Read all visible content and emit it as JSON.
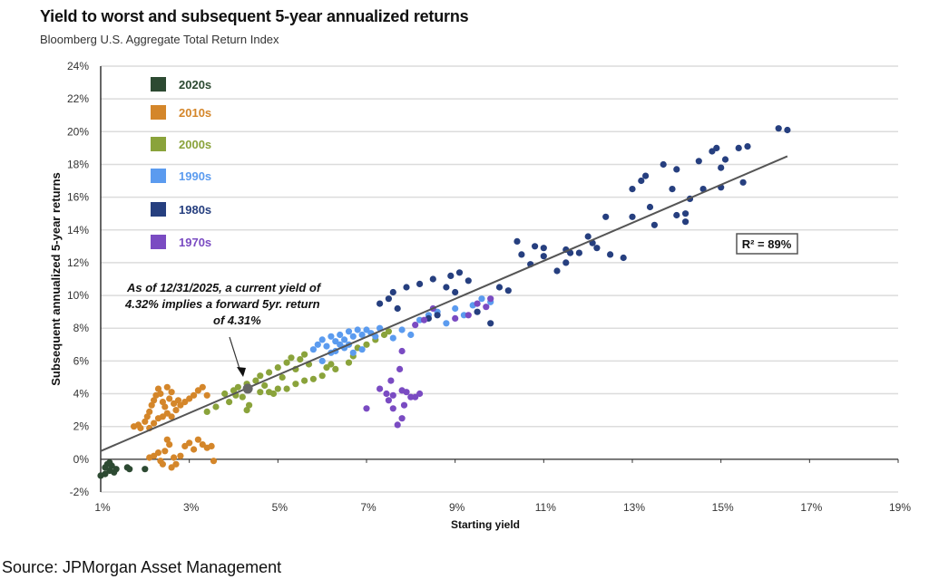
{
  "chart_data": {
    "type": "scatter",
    "title": "Yield to worst and subsequent 5-year annualized returns",
    "subtitle": "Bloomberg U.S. Aggregate Total Return Index",
    "xlabel": "Starting yield",
    "ylabel": "Subsequent annualized 5-year returns",
    "xlim": [
      1,
      19
    ],
    "ylim": [
      -2,
      24
    ],
    "x_ticks": [
      "1%",
      "3%",
      "5%",
      "7%",
      "9%",
      "11%",
      "13%",
      "15%",
      "17%",
      "19%"
    ],
    "y_ticks": [
      "-2%",
      "0%",
      "2%",
      "4%",
      "6%",
      "8%",
      "10%",
      "12%",
      "14%",
      "16%",
      "18%",
      "20%",
      "22%",
      "24%"
    ],
    "grid": "horizontal",
    "legend_position": "top-left",
    "r_squared_label": "R² = 89%",
    "annotation": [
      "As of 12/31/2025,  a current yield of",
      "4.32% implies a forward  5yr. return",
      "of 4.31%"
    ],
    "current_point": {
      "x": 4.32,
      "y": 4.31,
      "color": "#666666"
    },
    "trendline": {
      "x": [
        1.0,
        16.5
      ],
      "y": [
        0.5,
        18.5
      ],
      "color": "#555555"
    },
    "series": [
      {
        "name": "2020s",
        "color": "#2d4a32",
        "points": [
          [
            1.0,
            -1.0
          ],
          [
            1.1,
            -0.5
          ],
          [
            1.15,
            -0.3
          ],
          [
            1.2,
            -0.7
          ],
          [
            1.25,
            -0.4
          ],
          [
            1.3,
            -0.8
          ],
          [
            1.35,
            -0.6
          ],
          [
            1.6,
            -0.5
          ],
          [
            1.65,
            -0.6
          ],
          [
            2.0,
            -0.6
          ],
          [
            1.1,
            -0.9
          ],
          [
            1.2,
            -0.2
          ]
        ]
      },
      {
        "name": "2010s",
        "color": "#d4862a",
        "points": [
          [
            1.75,
            2.0
          ],
          [
            1.85,
            2.1
          ],
          [
            1.9,
            1.9
          ],
          [
            2.0,
            2.3
          ],
          [
            2.05,
            2.6
          ],
          [
            2.1,
            2.9
          ],
          [
            2.15,
            3.3
          ],
          [
            2.2,
            3.6
          ],
          [
            2.25,
            3.9
          ],
          [
            2.3,
            4.3
          ],
          [
            2.35,
            4.0
          ],
          [
            2.4,
            3.5
          ],
          [
            2.45,
            3.2
          ],
          [
            2.5,
            2.8
          ],
          [
            2.3,
            2.5
          ],
          [
            2.2,
            2.2
          ],
          [
            2.4,
            2.6
          ],
          [
            2.55,
            3.7
          ],
          [
            2.6,
            4.1
          ],
          [
            2.65,
            3.4
          ],
          [
            2.7,
            3.0
          ],
          [
            2.75,
            3.6
          ],
          [
            2.8,
            3.3
          ],
          [
            2.9,
            3.5
          ],
          [
            3.0,
            3.7
          ],
          [
            3.1,
            3.9
          ],
          [
            3.2,
            4.2
          ],
          [
            3.3,
            4.4
          ],
          [
            3.4,
            3.9
          ],
          [
            2.5,
            4.4
          ],
          [
            2.1,
            1.9
          ],
          [
            2.6,
            2.6
          ],
          [
            2.2,
            0.2
          ],
          [
            2.3,
            0.4
          ],
          [
            2.35,
            -0.1
          ],
          [
            2.45,
            0.5
          ],
          [
            2.5,
            1.2
          ],
          [
            2.55,
            0.9
          ],
          [
            2.6,
            -0.5
          ],
          [
            2.65,
            0.1
          ],
          [
            2.7,
            -0.3
          ],
          [
            2.8,
            0.2
          ],
          [
            2.9,
            0.8
          ],
          [
            3.0,
            1.0
          ],
          [
            3.1,
            0.6
          ],
          [
            3.2,
            1.2
          ],
          [
            3.3,
            0.9
          ],
          [
            3.4,
            0.7
          ],
          [
            3.5,
            0.8
          ],
          [
            3.55,
            -0.1
          ],
          [
            2.4,
            -0.3
          ],
          [
            2.1,
            0.1
          ]
        ]
      },
      {
        "name": "2000s",
        "color": "#8aa33b",
        "points": [
          [
            3.4,
            2.9
          ],
          [
            3.6,
            3.2
          ],
          [
            3.8,
            4.0
          ],
          [
            3.9,
            3.5
          ],
          [
            4.0,
            4.2
          ],
          [
            4.1,
            4.4
          ],
          [
            4.2,
            3.8
          ],
          [
            4.3,
            4.6
          ],
          [
            4.35,
            3.3
          ],
          [
            4.5,
            4.8
          ],
          [
            4.6,
            5.1
          ],
          [
            4.7,
            4.5
          ],
          [
            4.8,
            5.3
          ],
          [
            4.9,
            4.0
          ],
          [
            5.0,
            5.6
          ],
          [
            5.1,
            5.0
          ],
          [
            5.2,
            5.9
          ],
          [
            5.3,
            6.2
          ],
          [
            5.4,
            5.5
          ],
          [
            5.5,
            6.1
          ],
          [
            5.6,
            6.4
          ],
          [
            5.7,
            5.8
          ],
          [
            5.2,
            4.3
          ],
          [
            5.4,
            4.6
          ],
          [
            5.6,
            4.8
          ],
          [
            5.8,
            4.9
          ],
          [
            6.0,
            5.1
          ],
          [
            6.1,
            5.6
          ],
          [
            6.2,
            5.8
          ],
          [
            6.3,
            5.5
          ],
          [
            4.6,
            4.1
          ],
          [
            4.3,
            3.0
          ],
          [
            4.8,
            4.1
          ],
          [
            5.0,
            4.3
          ],
          [
            6.8,
            6.8
          ],
          [
            7.0,
            7.0
          ],
          [
            7.2,
            7.3
          ],
          [
            7.4,
            7.6
          ],
          [
            7.5,
            7.8
          ],
          [
            6.7,
            6.3
          ],
          [
            6.6,
            5.9
          ],
          [
            4.05,
            3.9
          ]
        ]
      },
      {
        "name": "1990s",
        "color": "#5b9bef",
        "points": [
          [
            5.8,
            6.7
          ],
          [
            5.9,
            7.0
          ],
          [
            6.0,
            7.3
          ],
          [
            6.1,
            6.9
          ],
          [
            6.2,
            7.5
          ],
          [
            6.3,
            7.2
          ],
          [
            6.4,
            7.6
          ],
          [
            6.5,
            7.3
          ],
          [
            6.6,
            7.8
          ],
          [
            6.7,
            7.5
          ],
          [
            6.8,
            7.9
          ],
          [
            6.9,
            7.6
          ],
          [
            7.0,
            7.9
          ],
          [
            7.1,
            7.7
          ],
          [
            7.2,
            7.5
          ],
          [
            6.3,
            6.6
          ],
          [
            6.5,
            6.8
          ],
          [
            6.7,
            6.5
          ],
          [
            6.9,
            6.7
          ],
          [
            7.3,
            8.0
          ],
          [
            6.2,
            6.5
          ],
          [
            6.4,
            7.0
          ],
          [
            7.6,
            7.4
          ],
          [
            7.8,
            7.9
          ],
          [
            8.0,
            7.6
          ],
          [
            8.2,
            8.5
          ],
          [
            8.4,
            8.8
          ],
          [
            8.6,
            9.0
          ],
          [
            8.8,
            8.3
          ],
          [
            9.0,
            9.2
          ],
          [
            9.2,
            8.8
          ],
          [
            9.4,
            9.4
          ],
          [
            9.6,
            9.8
          ],
          [
            9.8,
            9.6
          ],
          [
            6.0,
            6.0
          ],
          [
            6.6,
            7.0
          ]
        ]
      },
      {
        "name": "1980s",
        "color": "#263f7f",
        "points": [
          [
            7.3,
            9.5
          ],
          [
            7.5,
            9.8
          ],
          [
            7.6,
            10.2
          ],
          [
            7.7,
            9.2
          ],
          [
            7.9,
            10.5
          ],
          [
            8.2,
            10.7
          ],
          [
            8.5,
            11.0
          ],
          [
            8.9,
            11.2
          ],
          [
            9.1,
            11.4
          ],
          [
            9.3,
            10.9
          ],
          [
            9.0,
            10.2
          ],
          [
            8.8,
            10.5
          ],
          [
            8.6,
            8.8
          ],
          [
            8.4,
            8.6
          ],
          [
            9.5,
            9.0
          ],
          [
            9.8,
            8.3
          ],
          [
            10.0,
            10.5
          ],
          [
            10.2,
            10.3
          ],
          [
            10.4,
            13.3
          ],
          [
            10.5,
            12.5
          ],
          [
            10.8,
            13.0
          ],
          [
            11.0,
            12.4
          ],
          [
            11.3,
            11.5
          ],
          [
            11.5,
            12.0
          ],
          [
            11.8,
            12.6
          ],
          [
            12.0,
            13.6
          ],
          [
            12.2,
            12.9
          ],
          [
            12.5,
            12.5
          ],
          [
            12.8,
            12.3
          ],
          [
            13.0,
            14.8
          ],
          [
            13.0,
            16.5
          ],
          [
            13.2,
            17.0
          ],
          [
            13.4,
            15.4
          ],
          [
            13.5,
            14.3
          ],
          [
            13.7,
            18.0
          ],
          [
            13.9,
            16.5
          ],
          [
            14.0,
            17.7
          ],
          [
            14.2,
            14.5
          ],
          [
            14.3,
            15.9
          ],
          [
            14.5,
            18.2
          ],
          [
            14.6,
            16.5
          ],
          [
            14.8,
            18.8
          ],
          [
            14.9,
            19.0
          ],
          [
            15.0,
            17.8
          ],
          [
            15.1,
            18.3
          ],
          [
            15.4,
            19.0
          ],
          [
            15.6,
            19.1
          ],
          [
            15.5,
            16.9
          ],
          [
            16.3,
            20.2
          ],
          [
            16.5,
            20.1
          ],
          [
            11.0,
            12.9
          ],
          [
            11.6,
            12.6
          ],
          [
            12.1,
            13.2
          ],
          [
            14.0,
            14.9
          ],
          [
            15.0,
            16.6
          ],
          [
            14.2,
            15.0
          ],
          [
            13.3,
            17.3
          ],
          [
            10.7,
            11.9
          ],
          [
            11.5,
            12.8
          ],
          [
            12.4,
            14.8
          ]
        ]
      },
      {
        "name": "1970s",
        "color": "#7a4bc2",
        "points": [
          [
            7.0,
            3.1
          ],
          [
            7.3,
            4.3
          ],
          [
            7.45,
            4.0
          ],
          [
            7.5,
            3.6
          ],
          [
            7.55,
            4.8
          ],
          [
            7.6,
            3.9
          ],
          [
            7.6,
            3.1
          ],
          [
            7.7,
            2.1
          ],
          [
            7.8,
            2.5
          ],
          [
            7.9,
            4.1
          ],
          [
            8.0,
            3.8
          ],
          [
            8.1,
            3.8
          ],
          [
            8.2,
            4.0
          ],
          [
            7.85,
            3.3
          ],
          [
            7.8,
            4.2
          ],
          [
            7.75,
            5.5
          ],
          [
            7.8,
            6.6
          ],
          [
            8.1,
            8.2
          ],
          [
            8.5,
            9.2
          ],
          [
            9.0,
            8.6
          ],
          [
            9.3,
            8.8
          ],
          [
            9.5,
            9.5
          ],
          [
            9.7,
            9.3
          ],
          [
            9.8,
            9.8
          ],
          [
            8.3,
            8.5
          ]
        ]
      }
    ]
  },
  "source": "Source: JPMorgan Asset Management"
}
